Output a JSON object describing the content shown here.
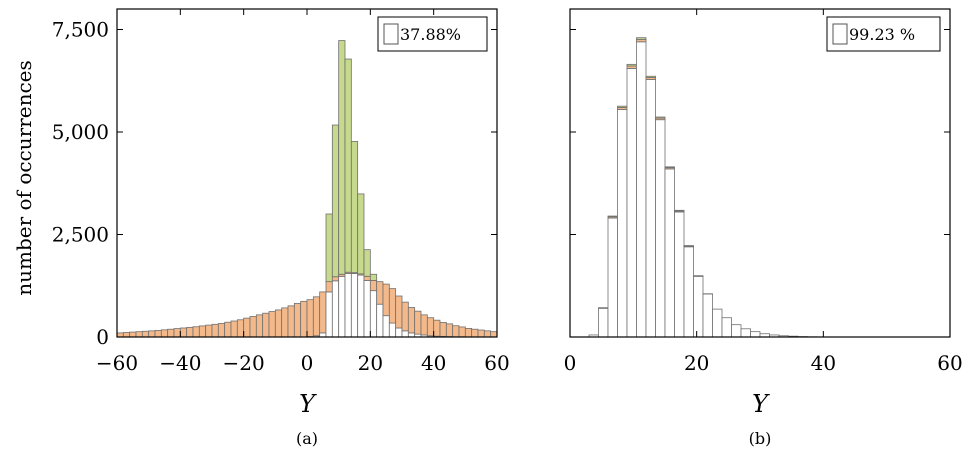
{
  "chart_data": [
    {
      "type": "bar",
      "stacked": true,
      "caption": "(a)",
      "xlabel": "Y",
      "ylabel": "number of occurrences",
      "xlim": [
        -60,
        60
      ],
      "ylim": [
        0,
        8000
      ],
      "xticks": [
        -60,
        -40,
        -20,
        0,
        20,
        40,
        60
      ],
      "xtick_labels": [
        "−60",
        "−40",
        "−20",
        "0",
        "20",
        "40",
        "60"
      ],
      "yticks": [
        0,
        2500,
        5000,
        7500
      ],
      "ytick_labels": [
        "0",
        "2,500",
        "5,000",
        "7,500"
      ],
      "legend": {
        "text": "37.88%",
        "position": "top-right"
      },
      "bin_width": 2,
      "x": [
        -59,
        -57,
        -55,
        -53,
        -51,
        -49,
        -47,
        -45,
        -43,
        -41,
        -39,
        -37,
        -35,
        -33,
        -31,
        -29,
        -27,
        -25,
        -23,
        -21,
        -19,
        -17,
        -15,
        -13,
        -11,
        -9,
        -7,
        -5,
        -3,
        -1,
        1,
        3,
        5,
        7,
        9,
        11,
        13,
        15,
        17,
        19,
        21,
        23,
        25,
        27,
        29,
        31,
        33,
        35,
        37,
        39,
        41,
        43,
        45,
        47,
        49,
        51,
        53,
        55,
        57,
        59
      ],
      "series": [
        {
          "color": "#ffffff",
          "values": [
            0,
            0,
            0,
            0,
            0,
            0,
            0,
            0,
            0,
            0,
            0,
            0,
            0,
            0,
            0,
            0,
            0,
            0,
            0,
            0,
            0,
            0,
            0,
            0,
            0,
            0,
            0,
            0,
            0,
            0,
            10,
            30,
            100,
            1100,
            1370,
            1480,
            1550,
            1550,
            1510,
            1380,
            1130,
            800,
            520,
            340,
            220,
            150,
            100,
            70,
            50,
            30,
            20,
            15,
            10,
            5,
            5,
            0,
            0,
            0,
            0,
            0
          ]
        },
        {
          "color": "#f4b98a",
          "values": [
            100,
            110,
            120,
            130,
            140,
            150,
            160,
            175,
            190,
            205,
            220,
            235,
            250,
            270,
            290,
            310,
            330,
            360,
            390,
            420,
            460,
            500,
            540,
            580,
            620,
            660,
            710,
            760,
            820,
            870,
            900,
            950,
            1000,
            250,
            100,
            50,
            30,
            20,
            30,
            100,
            250,
            550,
            770,
            840,
            780,
            700,
            620,
            560,
            490,
            440,
            390,
            340,
            310,
            270,
            240,
            210,
            190,
            170,
            150,
            130
          ]
        },
        {
          "color": "#c6d98c",
          "values": [
            0,
            0,
            0,
            0,
            0,
            0,
            0,
            0,
            0,
            0,
            0,
            0,
            0,
            0,
            0,
            0,
            0,
            0,
            0,
            0,
            0,
            0,
            0,
            0,
            0,
            0,
            0,
            0,
            0,
            0,
            0,
            0,
            0,
            1650,
            3700,
            5700,
            5200,
            3200,
            1950,
            650,
            150,
            0,
            0,
            0,
            0,
            0,
            0,
            0,
            0,
            0,
            0,
            0,
            0,
            0,
            0,
            0,
            0,
            0,
            0,
            0
          ]
        }
      ]
    },
    {
      "type": "bar",
      "stacked": true,
      "caption": "(b)",
      "xlabel": "Y",
      "ylabel": "",
      "xlim": [
        0,
        60
      ],
      "ylim": [
        0,
        8000
      ],
      "xticks": [
        0,
        20,
        40,
        60
      ],
      "xtick_labels": [
        "0",
        "20",
        "40",
        "60"
      ],
      "yticks": [
        0,
        2500,
        5000,
        7500
      ],
      "ytick_labels": [
        "",
        "",
        "",
        ""
      ],
      "legend": {
        "text": "99.23 %",
        "position": "top-right"
      },
      "bin_width": 1.5,
      "x": [
        3.75,
        5.25,
        6.75,
        8.25,
        9.75,
        11.25,
        12.75,
        14.25,
        15.75,
        17.25,
        18.75,
        20.25,
        21.75,
        23.25,
        24.75,
        26.25,
        27.75,
        29.25,
        30.75,
        32.25,
        33.75,
        35.25,
        36.75,
        38.25,
        39.75
      ],
      "series": [
        {
          "color": "#ffffff",
          "values": [
            50,
            700,
            2900,
            5550,
            6550,
            7200,
            6280,
            5300,
            4100,
            3050,
            2200,
            1480,
            1050,
            680,
            470,
            300,
            200,
            130,
            80,
            50,
            30,
            20,
            10,
            5,
            3
          ]
        },
        {
          "color": "#f4b98a",
          "values": [
            0,
            10,
            30,
            50,
            60,
            60,
            50,
            40,
            30,
            25,
            20,
            10,
            5,
            0,
            0,
            0,
            0,
            0,
            0,
            0,
            0,
            0,
            0,
            0,
            0
          ]
        },
        {
          "color": "#c6d98c",
          "values": [
            0,
            5,
            20,
            30,
            40,
            40,
            30,
            25,
            20,
            15,
            10,
            5,
            0,
            0,
            0,
            0,
            0,
            0,
            0,
            0,
            0,
            0,
            0,
            0,
            0
          ]
        }
      ]
    }
  ]
}
